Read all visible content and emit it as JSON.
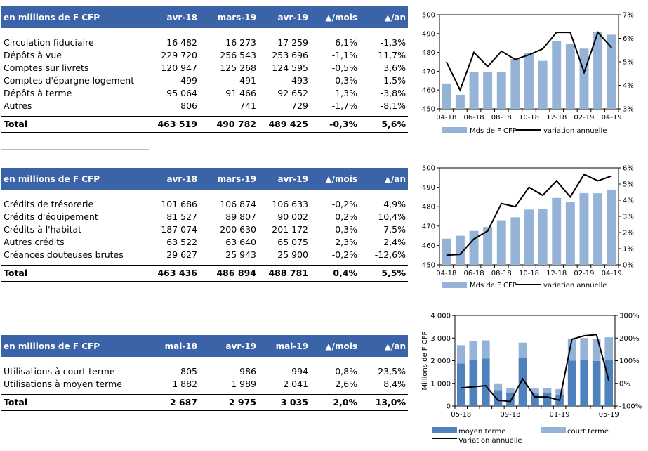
{
  "tables": [
    {
      "headers": [
        "en millions de F CFP",
        "avr-18",
        "mars-19",
        "avr-19",
        "▲/mois",
        "▲/an"
      ],
      "rows": [
        [
          "Circulation fiduciaire",
          "16 482",
          "16 273",
          "17 259",
          "6,1%",
          "-1,3%"
        ],
        [
          "Dépôts à vue",
          "229 720",
          "256 543",
          "253 696",
          "-1,1%",
          "11,7%"
        ],
        [
          "Comptes sur livrets",
          "120 947",
          "125 268",
          "124 595",
          "-0,5%",
          "3,6%"
        ],
        [
          "Comptes d'épargne logement",
          "499",
          "491",
          "493",
          "0,3%",
          "-1,5%"
        ],
        [
          "Dépôts à terme",
          "95 064",
          "91 466",
          "92 652",
          "1,3%",
          "-3,8%"
        ],
        [
          "Autres",
          "806",
          "741",
          "729",
          "-1,7%",
          "-8,1%"
        ]
      ],
      "total": [
        "Total",
        "463 519",
        "490 782",
        "489 425",
        "-0,3%",
        "5,6%"
      ]
    },
    {
      "headers": [
        "en millions de F CFP",
        "avr-18",
        "mars-19",
        "avr-19",
        "▲/mois",
        "▲/an"
      ],
      "rows": [
        [
          "Crédits de trésorerie",
          "101 686",
          "106 874",
          "106 633",
          "-0,2%",
          "4,9%"
        ],
        [
          "Crédits d'équipement",
          "81 527",
          "89 807",
          "90 002",
          "0,2%",
          "10,4%"
        ],
        [
          "Crédits à l'habitat",
          "187 074",
          "200 630",
          "201 172",
          "0,3%",
          "7,5%"
        ],
        [
          "Autres crédits",
          "63 522",
          "63 640",
          "65 075",
          "2,3%",
          "2,4%"
        ],
        [
          "Créances douteuses brutes",
          "29 627",
          "25 943",
          "25 900",
          "-0,2%",
          "-12,6%"
        ]
      ],
      "total": [
        "Total",
        "463 436",
        "486 894",
        "488 781",
        "0,4%",
        "5,5%"
      ]
    },
    {
      "headers": [
        "en millions de F CFP",
        "mai-18",
        "avr-19",
        "mai-19",
        "▲/mois",
        "▲/an"
      ],
      "rows": [
        [
          "Utilisations à court terme",
          "805",
          "986",
          "994",
          "0,8%",
          "23,5%"
        ],
        [
          "Utilisations à moyen terme",
          "1 882",
          "1 989",
          "2 041",
          "2,6%",
          "8,4%"
        ]
      ],
      "total": [
        "Total",
        "2 687",
        "2 975",
        "3 035",
        "2,0%",
        "13,0%"
      ]
    }
  ],
  "chart_data": [
    {
      "type": "bar",
      "categories": [
        "04-18",
        "05-18",
        "06-18",
        "07-18",
        "08-18",
        "09-18",
        "10-18",
        "11-18",
        "12-18",
        "01-19",
        "02-19",
        "03-19",
        "04-19"
      ],
      "xtick_labels": [
        "04-18",
        "06-18",
        "08-18",
        "10-18",
        "12-18",
        "02-19",
        "04-19"
      ],
      "series": [
        {
          "name": "Mds de F CFP",
          "type": "bar",
          "axis": "left",
          "color": "#95b3d7",
          "values": [
            463.5,
            457.5,
            469.5,
            469.5,
            469.5,
            476.5,
            479.5,
            475.5,
            486.0,
            484.5,
            482.0,
            490.8,
            489.4
          ]
        },
        {
          "name": "variation annuelle",
          "type": "line",
          "axis": "right",
          "color": "#000000",
          "values": [
            5.0,
            3.8,
            5.4,
            4.8,
            5.45,
            5.1,
            5.3,
            5.55,
            6.25,
            6.25,
            4.55,
            6.25,
            5.6
          ]
        }
      ],
      "ylim": [
        450,
        500
      ],
      "yticks": [
        450,
        460,
        470,
        480,
        490,
        500
      ],
      "y2lim": [
        3,
        7
      ],
      "y2ticks": [
        "3%",
        "4%",
        "5%",
        "6%",
        "7%"
      ],
      "legend": "bottom"
    },
    {
      "type": "bar",
      "categories": [
        "04-18",
        "05-18",
        "06-18",
        "07-18",
        "08-18",
        "09-18",
        "10-18",
        "11-18",
        "12-18",
        "01-19",
        "02-19",
        "03-19",
        "04-19"
      ],
      "xtick_labels": [
        "04-18",
        "06-18",
        "08-18",
        "10-18",
        "12-18",
        "02-19",
        "04-19"
      ],
      "series": [
        {
          "name": "Mds de F CFP",
          "type": "bar",
          "axis": "left",
          "color": "#95b3d7",
          "values": [
            463.5,
            465.0,
            467.5,
            469.5,
            473.0,
            474.5,
            478.5,
            479.0,
            484.5,
            482.5,
            487.0,
            486.9,
            488.8
          ]
        },
        {
          "name": "variation annuelle",
          "type": "line",
          "axis": "right",
          "color": "#000000",
          "values": [
            0.6,
            0.65,
            1.6,
            2.1,
            3.8,
            3.6,
            4.8,
            4.3,
            5.2,
            4.2,
            5.6,
            5.2,
            5.5
          ]
        }
      ],
      "ylim": [
        450,
        500
      ],
      "yticks": [
        450,
        460,
        470,
        480,
        490,
        500
      ],
      "y2lim": [
        0,
        6
      ],
      "y2ticks": [
        "0%",
        "1%",
        "2%",
        "3%",
        "4%",
        "5%",
        "6%"
      ],
      "legend": "bottom"
    },
    {
      "type": "bar",
      "stacked": true,
      "categories": [
        "05-18",
        "06-18",
        "07-18",
        "08-18",
        "09-18",
        "10-18",
        "11-18",
        "12-18",
        "01-19",
        "02-19",
        "03-19",
        "04-19",
        "05-19"
      ],
      "xtick_labels": [
        "05-18",
        "09-18",
        "01-19",
        "05-19"
      ],
      "ylabel": "Millions de F CFP",
      "series": [
        {
          "name": "moyen terme",
          "type": "bar",
          "axis": "left",
          "color": "#4f81bd",
          "values": [
            1882,
            2050,
            2100,
            700,
            600,
            2150,
            550,
            600,
            500,
            2000,
            2050,
            1989,
            2041
          ]
        },
        {
          "name": "court terme",
          "type": "bar",
          "axis": "left",
          "color": "#95b3d7",
          "values": [
            805,
            820,
            800,
            300,
            200,
            650,
            220,
            200,
            250,
            950,
            950,
            986,
            994
          ]
        },
        {
          "name": "Variation annuelle",
          "type": "line",
          "axis": "right",
          "color": "#000000",
          "values": [
            -20,
            -15,
            -10,
            -75,
            -80,
            20,
            -60,
            -60,
            -75,
            195,
            210,
            215,
            13
          ]
        }
      ],
      "ylim": [
        0,
        4000
      ],
      "yticks": [
        "0",
        "1 000",
        "2 000",
        "3 000",
        "4 000"
      ],
      "y2lim": [
        -100,
        300
      ],
      "y2ticks": [
        "-100%",
        "0%",
        "100%",
        "200%",
        "300%"
      ],
      "legend": "bottom"
    }
  ]
}
